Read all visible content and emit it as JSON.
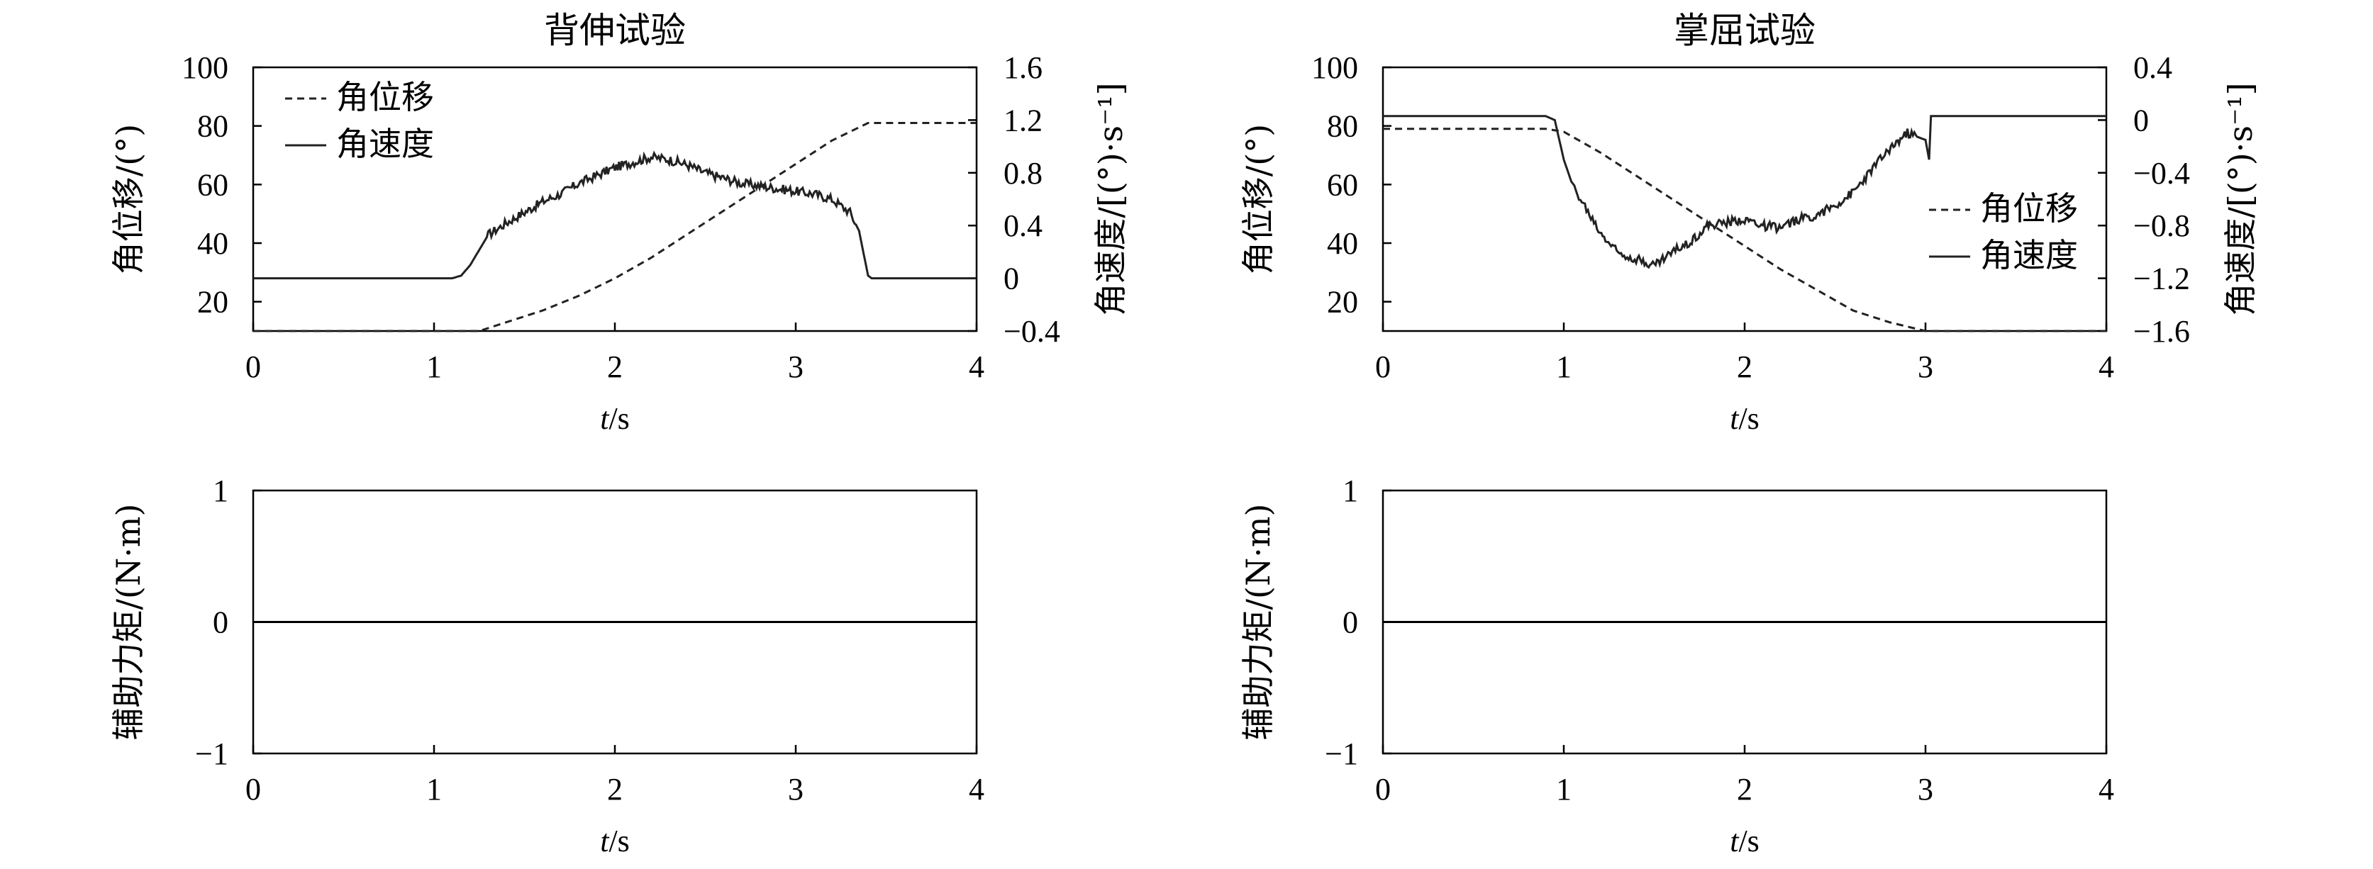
{
  "chart_data": [
    {
      "type": "line",
      "title": "背伸试验",
      "xlabel": "t/s",
      "xlabel_var": "t",
      "xlabel_unit": "/s",
      "ylabel": "角位移/(°)",
      "y2label": "角速度/[(°)·s⁻¹]",
      "xlim": [
        0,
        4
      ],
      "ylim": [
        10,
        100
      ],
      "y2lim": [
        -0.4,
        1.6
      ],
      "xticks": [
        "0",
        "1",
        "2",
        "3",
        "4"
      ],
      "yticks": [
        "20",
        "40",
        "60",
        "80",
        "100"
      ],
      "y2ticks": [
        "−0.4",
        "0",
        "0.4",
        "0.8",
        "1.2",
        "1.6"
      ],
      "legend": {
        "position": "upper-left",
        "entries": [
          "角位移",
          "角速度"
        ]
      },
      "series": [
        {
          "name": "角位移",
          "axis": "left",
          "style": "dashed",
          "x": [
            0,
            1.25,
            1.4,
            1.6,
            1.8,
            2.0,
            2.2,
            2.4,
            2.6,
            2.8,
            3.0,
            3.2,
            3.4,
            4.0
          ],
          "y": [
            10,
            10,
            13,
            17,
            22,
            28,
            35,
            43,
            51,
            59,
            67,
            75,
            81,
            81
          ]
        },
        {
          "name": "角速度",
          "axis": "right",
          "style": "solid",
          "x": [
            0,
            1.1,
            1.15,
            1.2,
            1.3,
            1.4,
            1.5,
            1.6,
            1.7,
            1.8,
            1.9,
            2.0,
            2.1,
            2.2,
            2.3,
            2.4,
            2.5,
            2.6,
            2.7,
            2.8,
            2.9,
            3.0,
            3.1,
            3.2,
            3.3,
            3.35,
            3.4,
            3.42,
            4.0
          ],
          "y": [
            0,
            0,
            0.02,
            0.1,
            0.33,
            0.42,
            0.5,
            0.58,
            0.64,
            0.72,
            0.78,
            0.84,
            0.88,
            0.92,
            0.9,
            0.86,
            0.8,
            0.76,
            0.72,
            0.7,
            0.68,
            0.66,
            0.64,
            0.6,
            0.5,
            0.36,
            0.02,
            0,
            0
          ]
        }
      ]
    },
    {
      "type": "line",
      "title": "掌屈试验",
      "xlabel": "t/s",
      "xlabel_var": "t",
      "xlabel_unit": "/s",
      "ylabel": "角位移/(°)",
      "y2label": "角速度/[(°)·s⁻¹]",
      "xlim": [
        0,
        4
      ],
      "ylim": [
        10,
        100
      ],
      "y2lim": [
        -1.6,
        0.4
      ],
      "xticks": [
        "0",
        "1",
        "2",
        "3",
        "4"
      ],
      "yticks": [
        "20",
        "40",
        "60",
        "80",
        "100"
      ],
      "y2ticks": [
        "−1.6",
        "−1.2",
        "−0.8",
        "−0.4",
        "0",
        "0.4"
      ],
      "legend": {
        "position": "center-right",
        "entries": [
          "角位移",
          "角速度"
        ]
      },
      "series": [
        {
          "name": "角位移",
          "axis": "left",
          "style": "dashed",
          "x": [
            0,
            0.9,
            1.0,
            1.2,
            1.4,
            1.6,
            1.8,
            2.0,
            2.2,
            2.4,
            2.6,
            2.8,
            3.0,
            4.0
          ],
          "y": [
            79,
            79,
            78,
            71,
            63,
            55,
            47,
            39,
            31,
            24,
            17,
            13,
            10,
            10
          ]
        },
        {
          "name": "角速度",
          "axis": "right",
          "style": "solid",
          "x": [
            0,
            0.9,
            0.95,
            1.0,
            1.05,
            1.1,
            1.2,
            1.3,
            1.4,
            1.5,
            1.6,
            1.7,
            1.8,
            1.9,
            2.0,
            2.1,
            2.2,
            2.3,
            2.4,
            2.5,
            2.6,
            2.7,
            2.8,
            2.9,
            3.0,
            3.02,
            3.03,
            4.0
          ],
          "y": [
            0.03,
            0.03,
            0,
            -0.3,
            -0.5,
            -0.62,
            -0.85,
            -1.0,
            -1.05,
            -1.1,
            -1.0,
            -0.92,
            -0.8,
            -0.78,
            -0.75,
            -0.8,
            -0.82,
            -0.75,
            -0.72,
            -0.65,
            -0.55,
            -0.38,
            -0.22,
            -0.1,
            -0.15,
            -0.3,
            0.03,
            0.03
          ]
        }
      ]
    },
    {
      "type": "line",
      "xlabel": "t/s",
      "xlabel_var": "t",
      "xlabel_unit": "/s",
      "ylabel": "辅助力矩/(N·m)",
      "xlim": [
        0,
        4
      ],
      "ylim": [
        -1,
        1
      ],
      "xticks": [
        "0",
        "1",
        "2",
        "3",
        "4"
      ],
      "yticks": [
        "−1",
        "0",
        "1"
      ],
      "series": [
        {
          "x": [
            0,
            4
          ],
          "y": [
            0,
            0
          ]
        }
      ]
    },
    {
      "type": "line",
      "xlabel": "t/s",
      "xlabel_var": "t",
      "xlabel_unit": "/s",
      "ylabel": "辅助力矩/(N·m)",
      "xlim": [
        0,
        4
      ],
      "ylim": [
        -1,
        1
      ],
      "xticks": [
        "0",
        "1",
        "2",
        "3",
        "4"
      ],
      "yticks": [
        "−1",
        "0",
        "1"
      ],
      "series": [
        {
          "x": [
            0,
            4
          ],
          "y": [
            0,
            0
          ]
        }
      ]
    }
  ]
}
